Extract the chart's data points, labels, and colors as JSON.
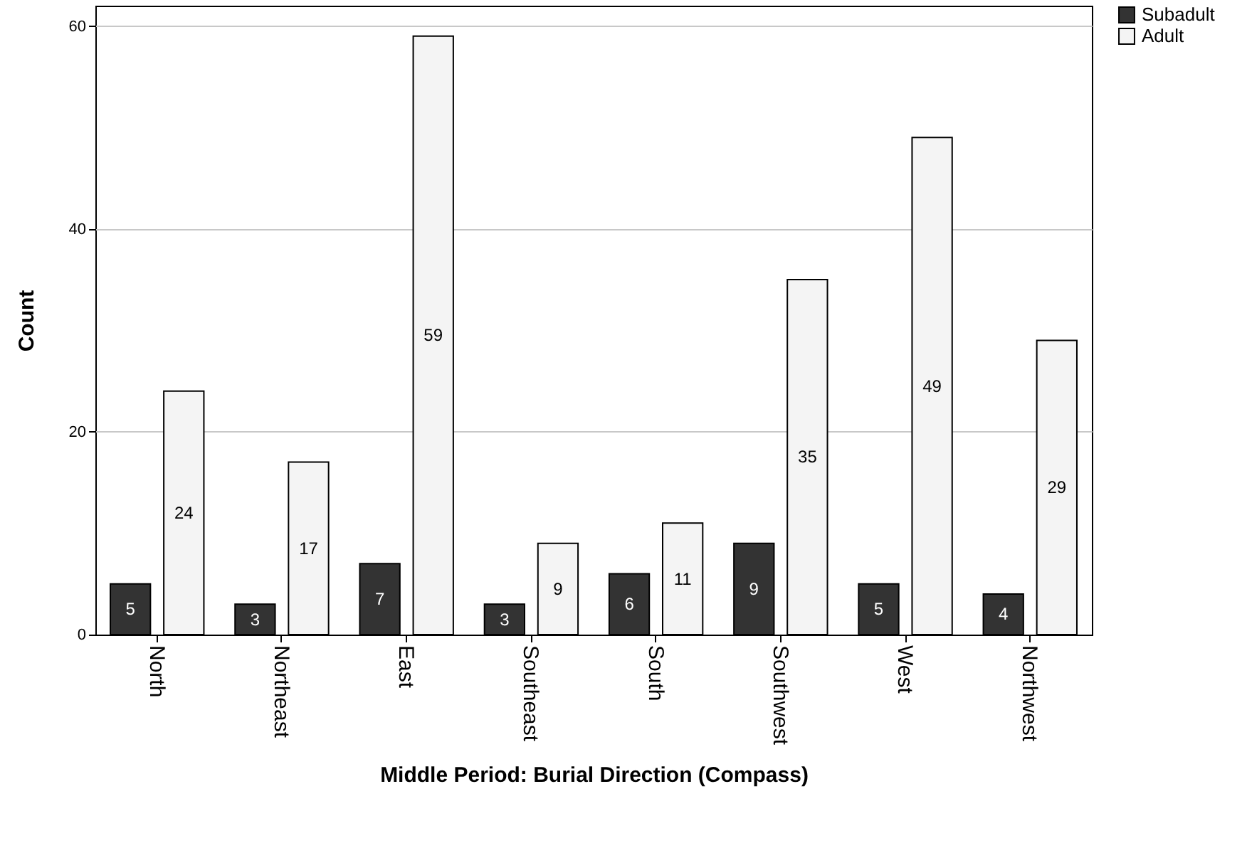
{
  "chart_data": {
    "type": "bar",
    "xlabel": "Middle Period: Burial Direction (Compass)",
    "ylabel": "Count",
    "categories": [
      "North",
      "Northeast",
      "East",
      "Southeast",
      "South",
      "Southwest",
      "West",
      "Northwest"
    ],
    "series": [
      {
        "name": "Subadult",
        "color": "#333333",
        "values": [
          5,
          3,
          7,
          3,
          6,
          9,
          5,
          4
        ]
      },
      {
        "name": "Adult",
        "color": "#f4f4f4",
        "values": [
          24,
          17,
          59,
          9,
          11,
          35,
          49,
          29
        ]
      }
    ],
    "ylim": [
      0,
      62
    ],
    "yticks": [
      0,
      20,
      40,
      60
    ],
    "grid": "y",
    "legend": "top right",
    "data_labels": true
  }
}
